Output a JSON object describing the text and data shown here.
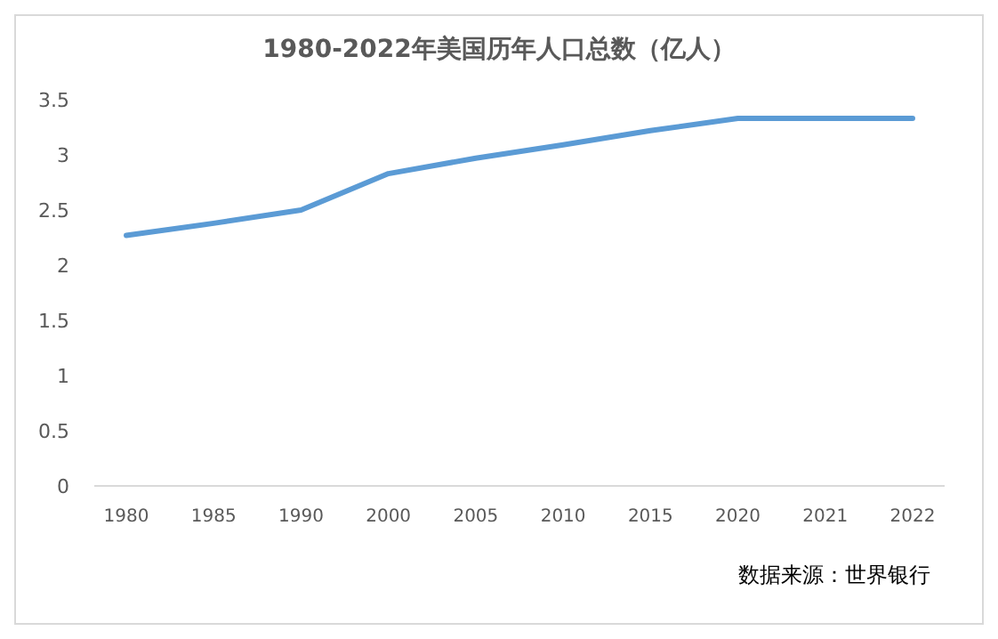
{
  "chart_data": {
    "type": "line",
    "title": "1980-2022年美国历年人口总数（亿人）",
    "categories": [
      "1980",
      "1985",
      "1990",
      "2000",
      "2005",
      "2010",
      "2015",
      "2020",
      "2021",
      "2022"
    ],
    "series": [
      {
        "color": "#5b9bd5",
        "values": [
          2.27,
          2.38,
          2.5,
          2.83,
          2.97,
          3.09,
          3.22,
          3.33,
          3.33,
          3.33
        ]
      }
    ],
    "ylim": [
      0,
      3.5
    ],
    "yticks": [
      0,
      0.5,
      1,
      1.5,
      2,
      2.5,
      3,
      3.5
    ],
    "grid": false,
    "marker": "none",
    "line_style": "solid",
    "annotations": [
      "数据来源：世界银行"
    ]
  }
}
